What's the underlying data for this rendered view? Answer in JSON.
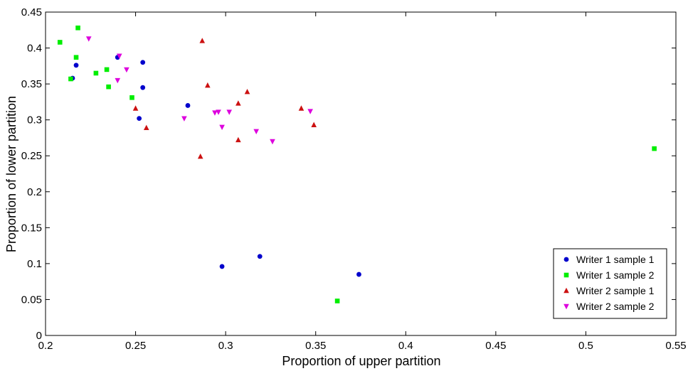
{
  "chart_data": {
    "type": "scatter",
    "xlabel": "Proportion of upper partition",
    "ylabel": "Proportion of lower partition",
    "xlim": [
      0.2,
      0.55
    ],
    "ylim": [
      0,
      0.45
    ],
    "x_ticks": [
      0.2,
      0.25,
      0.3,
      0.35,
      0.4,
      0.45,
      0.5,
      0.55
    ],
    "x_tick_labels": [
      "0.2",
      "0.25",
      "0.3",
      "0.35",
      "0.4",
      "0.45",
      "0.5",
      "0.55"
    ],
    "y_ticks": [
      0,
      0.05,
      0.1,
      0.15,
      0.2,
      0.25,
      0.3,
      0.35,
      0.4,
      0.45
    ],
    "y_tick_labels": [
      "0",
      "0.05",
      "0.1",
      "0.15",
      "0.2",
      "0.25",
      "0.3",
      "0.35",
      "0.4",
      "0.45"
    ],
    "grid": false,
    "legend_position": "bottom-right",
    "series": [
      {
        "name": "Writer 1 sample 1",
        "marker": "circle",
        "color": "#0000cc",
        "points": [
          [
            0.215,
            0.358
          ],
          [
            0.217,
            0.376
          ],
          [
            0.24,
            0.387
          ],
          [
            0.252,
            0.302
          ],
          [
            0.254,
            0.345
          ],
          [
            0.254,
            0.38
          ],
          [
            0.279,
            0.32
          ],
          [
            0.298,
            0.096
          ],
          [
            0.319,
            0.11
          ],
          [
            0.374,
            0.085
          ]
        ]
      },
      {
        "name": "Writer 1 sample 2",
        "marker": "square",
        "color": "#00ee00",
        "points": [
          [
            0.208,
            0.408
          ],
          [
            0.214,
            0.357
          ],
          [
            0.217,
            0.387
          ],
          [
            0.218,
            0.428
          ],
          [
            0.228,
            0.365
          ],
          [
            0.234,
            0.37
          ],
          [
            0.235,
            0.346
          ],
          [
            0.248,
            0.331
          ],
          [
            0.362,
            0.048
          ],
          [
            0.538,
            0.26
          ]
        ]
      },
      {
        "name": "Writer 2 sample 1",
        "marker": "triangle-up",
        "color": "#cc1111",
        "points": [
          [
            0.25,
            0.316
          ],
          [
            0.256,
            0.289
          ],
          [
            0.286,
            0.249
          ],
          [
            0.287,
            0.41
          ],
          [
            0.29,
            0.348
          ],
          [
            0.307,
            0.323
          ],
          [
            0.307,
            0.272
          ],
          [
            0.312,
            0.339
          ],
          [
            0.342,
            0.316
          ],
          [
            0.349,
            0.293
          ]
        ]
      },
      {
        "name": "Writer 2 sample 2",
        "marker": "triangle-down",
        "color": "#dd00dd",
        "points": [
          [
            0.224,
            0.413
          ],
          [
            0.24,
            0.355
          ],
          [
            0.241,
            0.389
          ],
          [
            0.245,
            0.37
          ],
          [
            0.277,
            0.302
          ],
          [
            0.294,
            0.31
          ],
          [
            0.296,
            0.311
          ],
          [
            0.298,
            0.29
          ],
          [
            0.302,
            0.311
          ],
          [
            0.317,
            0.284
          ],
          [
            0.326,
            0.27
          ],
          [
            0.347,
            0.312
          ]
        ]
      }
    ]
  }
}
